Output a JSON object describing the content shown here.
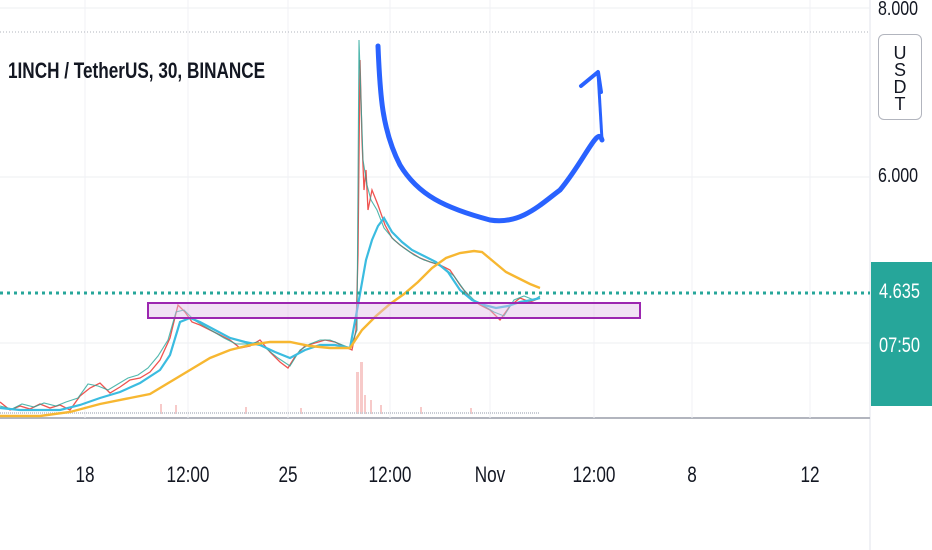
{
  "header": {
    "title": "1INCH / TetherUS, 30, BINANCE"
  },
  "price_axis": {
    "labels": [
      {
        "id": "p8",
        "text": "8.000"
      },
      {
        "id": "p6",
        "text": "6.000"
      }
    ],
    "currency": "USDT",
    "current_price": "4.635",
    "countdown": "07:50"
  },
  "time_axis": {
    "ticks": [
      {
        "text": "18"
      },
      {
        "text": "12:00"
      },
      {
        "text": "25"
      },
      {
        "text": "12:00"
      },
      {
        "text": "Nov"
      },
      {
        "text": "12:00"
      },
      {
        "text": "8"
      },
      {
        "text": "12"
      }
    ]
  },
  "colors": {
    "background": "#ffffff",
    "grid": "#e0e3eb",
    "candles_up": "#26a69a",
    "candles_down": "#ef5350",
    "ema_fast": "#4ec3e8",
    "ema_slow": "#f7b731",
    "support_zone": "#9c27b0",
    "projection_arrow": "#2962ff",
    "current_price": "#26a69a"
  },
  "annotations": {
    "support_zone": "support-rectangle",
    "projection": "cup-arrow"
  }
}
